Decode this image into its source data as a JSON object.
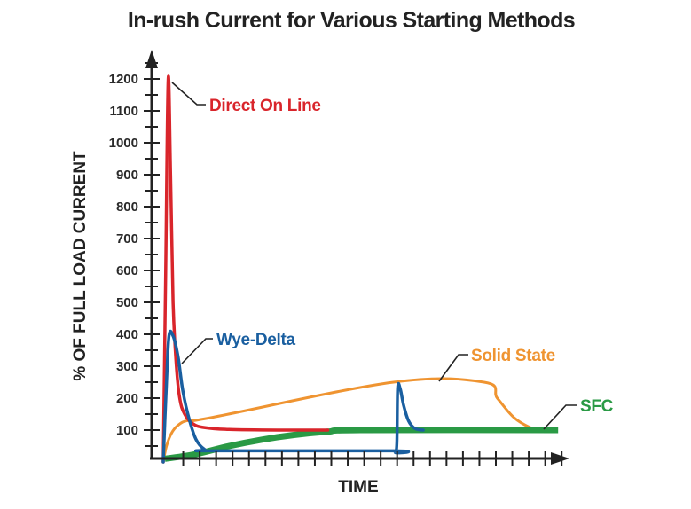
{
  "chart_data": {
    "type": "line",
    "title": "In-rush Current for Various Starting Methods",
    "xlabel": "TIME",
    "ylabel": "% OF FULL LOAD CURRENT",
    "xlim": [
      0,
      24.5
    ],
    "ylim": [
      0,
      1250
    ],
    "yticks": [
      100,
      200,
      300,
      400,
      500,
      600,
      700,
      800,
      900,
      1000,
      1100,
      1200
    ],
    "ytick_labels": [
      "100",
      "200",
      "300",
      "400",
      "500",
      "600",
      "700",
      "800",
      "900",
      "1000",
      "1100",
      "1200"
    ],
    "xtick_count": 24,
    "grid": false,
    "legend": "inline labels",
    "series": [
      {
        "name": "Direct On Line",
        "color": "#d9252b",
        "points": [
          [
            0,
            0
          ],
          [
            0.15,
            600
          ],
          [
            0.3,
            1200
          ],
          [
            0.45,
            900
          ],
          [
            0.6,
            500
          ],
          [
            0.8,
            300
          ],
          [
            1.0,
            200
          ],
          [
            1.3,
            150
          ],
          [
            1.8,
            120
          ],
          [
            2.5,
            108
          ],
          [
            4,
            102
          ],
          [
            7,
            100
          ],
          [
            10,
            100
          ]
        ]
      },
      {
        "name": "Wye-Delta",
        "color": "#1a5fa0",
        "points": [
          [
            0,
            0
          ],
          [
            0.2,
            250
          ],
          [
            0.35,
            395
          ],
          [
            0.6,
            395
          ],
          [
            0.9,
            330
          ],
          [
            1.2,
            220
          ],
          [
            1.6,
            130
          ],
          [
            2.0,
            70
          ],
          [
            2.5,
            40
          ],
          [
            3,
            35
          ],
          [
            14,
            35
          ],
          [
            14.1,
            30
          ],
          [
            14.2,
            60
          ],
          [
            14.25,
            230
          ],
          [
            14.4,
            230
          ],
          [
            14.6,
            180
          ],
          [
            14.9,
            130
          ],
          [
            15.3,
            105
          ],
          [
            15.8,
            100
          ]
        ]
      },
      {
        "name": "Solid State",
        "color": "#ef9431",
        "points": [
          [
            0,
            0
          ],
          [
            0.2,
            50
          ],
          [
            0.5,
            90
          ],
          [
            0.9,
            115
          ],
          [
            1.5,
            130
          ],
          [
            3,
            140
          ],
          [
            14,
            250
          ],
          [
            19.5,
            250
          ],
          [
            20.3,
            200
          ],
          [
            21.3,
            140
          ],
          [
            22.3,
            108
          ],
          [
            23,
            100
          ]
        ]
      },
      {
        "name": "SFC",
        "color": "#2a9a45",
        "points": [
          [
            0.1,
            10
          ],
          [
            2,
            25
          ],
          [
            4,
            50
          ],
          [
            6,
            70
          ],
          [
            8,
            85
          ],
          [
            10,
            95
          ],
          [
            12,
            100
          ],
          [
            24,
            100
          ]
        ]
      }
    ]
  }
}
